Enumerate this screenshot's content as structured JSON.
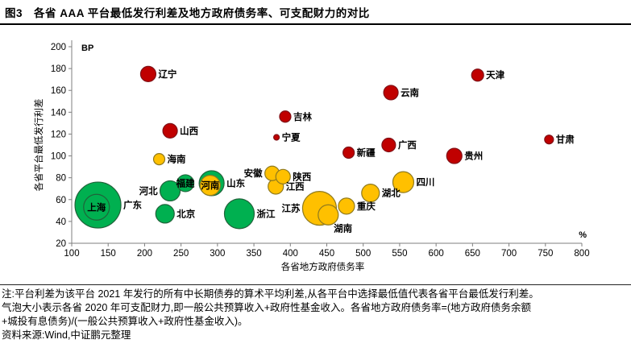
{
  "header": {
    "title": "图3　各省 AAA 平台最低发行利差及地方政府债务率、可支配财力的对比"
  },
  "notes": {
    "line1": "注:平台利差为该平台 2021 年发行的所有中长期债券的算术平均利差,从各平台中选择最低值代表各省平台最低发行利差。",
    "line2": "气泡大小表示各省 2020 年可支配财力,即一般公共预算收入+政府性基金收入。各省地方政府债务率=(地方政府债务余额",
    "line3": "+城投有息债务)/(一般公共预算收入+政府性基金收入)。",
    "source": "资料来源:Wind,中证鹏元整理"
  },
  "chart_data": {
    "type": "scatter",
    "title": "各省AAA平台最低发行利差及地方政府债务率、可支配财力的对比",
    "xlabel": "各省地方政府债务率",
    "x_unit": "%",
    "ylabel": "各省平台最低发行利差",
    "y_unit": "BP",
    "xlim": [
      100,
      800
    ],
    "ylim": [
      20,
      200
    ],
    "x_ticks": [
      100,
      150,
      200,
      250,
      300,
      350,
      400,
      450,
      500,
      550,
      600,
      650,
      700,
      750,
      800
    ],
    "y_ticks": [
      20,
      40,
      60,
      80,
      100,
      120,
      140,
      160,
      180,
      200
    ],
    "grid": false,
    "legend": "none",
    "bubble_note": "x=地方政府债务率(%), y=平台最低发行利差(BP), r=气泡像素半径(可支配财力大小)",
    "colors": {
      "red": {
        "fill": "#C00000",
        "stroke": "#801016"
      },
      "yellow": {
        "fill": "#FFC000",
        "stroke": "#8F7A1E"
      },
      "green": {
        "fill": "#00B050",
        "stroke": "#20633a"
      }
    },
    "bubbles": [
      {
        "name": "辽宁",
        "x": 205,
        "y": 175,
        "r": 9.5,
        "color": "red",
        "label_pos": "right"
      },
      {
        "name": "山西",
        "x": 235,
        "y": 123,
        "r": 9,
        "color": "red",
        "label_pos": "right"
      },
      {
        "name": "吉林",
        "x": 393,
        "y": 136,
        "r": 7,
        "color": "red",
        "label_pos": "right"
      },
      {
        "name": "宁夏",
        "x": 381,
        "y": 117,
        "r": 3.5,
        "color": "red",
        "label_pos": "right"
      },
      {
        "name": "新疆",
        "x": 480,
        "y": 103,
        "r": 7,
        "color": "red",
        "label_pos": "right"
      },
      {
        "name": "天津",
        "x": 657,
        "y": 174,
        "r": 7.5,
        "color": "red",
        "label_pos": "right"
      },
      {
        "name": "云南",
        "x": 538,
        "y": 158,
        "r": 9,
        "color": "red",
        "label_pos": "right"
      },
      {
        "name": "广西",
        "x": 535,
        "y": 110,
        "r": 8.5,
        "color": "red",
        "label_pos": "right"
      },
      {
        "name": "贵州",
        "x": 625,
        "y": 100,
        "r": 9.5,
        "color": "red",
        "label_pos": "right"
      },
      {
        "name": "甘肃",
        "x": 755,
        "y": 115,
        "r": 5.5,
        "color": "red",
        "label_pos": "right"
      },
      {
        "name": "海南",
        "x": 220,
        "y": 97,
        "r": 7,
        "color": "yellow",
        "label_pos": "right"
      },
      {
        "name": "河南",
        "x": 290,
        "y": 73,
        "r": 12.5,
        "color": "yellow",
        "label_pos": "inside"
      },
      {
        "name": "安徽",
        "x": 375,
        "y": 84,
        "r": 9,
        "color": "yellow",
        "label_pos": "left"
      },
      {
        "name": "陕西",
        "x": 390,
        "y": 81,
        "r": 9,
        "color": "yellow",
        "label_pos": "right"
      },
      {
        "name": "江西",
        "x": 380,
        "y": 72,
        "r": 9.5,
        "color": "yellow",
        "label_pos": "right"
      },
      {
        "name": "江苏",
        "x": 440,
        "y": 52,
        "r": 21,
        "color": "yellow",
        "label_pos": "left"
      },
      {
        "name": "湖南",
        "x": 452,
        "y": 46,
        "r": 12.5,
        "color": "yellow",
        "label_pos": "below-right"
      },
      {
        "name": "重庆",
        "x": 477,
        "y": 54,
        "r": 10,
        "color": "yellow",
        "label_pos": "right"
      },
      {
        "name": "湖北",
        "x": 510,
        "y": 66,
        "r": 11,
        "color": "yellow",
        "label_pos": "right"
      },
      {
        "name": "四川",
        "x": 555,
        "y": 76,
        "r": 13,
        "color": "yellow",
        "label_pos": "right"
      },
      {
        "name": "广东",
        "x": 136,
        "y": 55,
        "r": 28.5,
        "color": "green",
        "label_pos": "right"
      },
      {
        "name": "上海",
        "x": 134,
        "y": 53,
        "r": 16,
        "color": "green",
        "label_pos": "inside"
      },
      {
        "name": "河北",
        "x": 235,
        "y": 68,
        "r": 12.5,
        "color": "green",
        "label_pos": "left"
      },
      {
        "name": "福建",
        "x": 256,
        "y": 75,
        "r": 10.5,
        "color": "green",
        "label_pos": "inside"
      },
      {
        "name": "山东",
        "x": 292,
        "y": 75,
        "r": 15.5,
        "color": "green",
        "label_pos": "right"
      },
      {
        "name": "北京",
        "x": 228,
        "y": 47,
        "r": 11.5,
        "color": "green",
        "label_pos": "right"
      },
      {
        "name": "浙江",
        "x": 330,
        "y": 47,
        "r": 18.5,
        "color": "green",
        "label_pos": "right"
      }
    ]
  }
}
